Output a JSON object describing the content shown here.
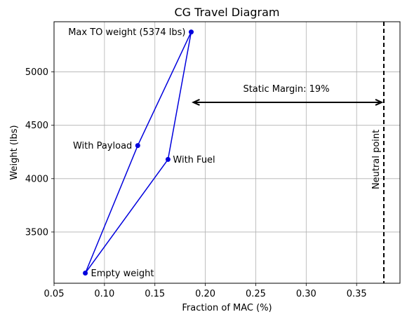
{
  "chart_data": {
    "type": "line",
    "title": "CG Travel Diagram",
    "xlabel": "Fraction of MAC (%)",
    "ylabel": "Weight (lbs)",
    "xlim": [
      0.05,
      0.393
    ],
    "ylim": [
      3020,
      5470
    ],
    "xticks": [
      0.05,
      0.1,
      0.15,
      0.2,
      0.25,
      0.3,
      0.35
    ],
    "xtick_labels": [
      "0.05",
      "0.10",
      "0.15",
      "0.20",
      "0.25",
      "0.30",
      "0.35"
    ],
    "yticks": [
      3500,
      4000,
      4500,
      5000
    ],
    "ytick_labels": [
      "3500",
      "4000",
      "4500",
      "5000"
    ],
    "grid": true,
    "series": [
      {
        "color": "#0000dd",
        "points": [
          {
            "x": 0.081,
            "y": 3115,
            "label": "Empty weight"
          },
          {
            "x": 0.163,
            "y": 4180,
            "label": "With Fuel"
          },
          {
            "x": 0.186,
            "y": 5374,
            "label": "Max TO weight (5374 lbs)"
          },
          {
            "x": 0.133,
            "y": 4310,
            "label": "With Payload"
          },
          {
            "x": 0.081,
            "y": 3115,
            "label": ""
          }
        ]
      }
    ],
    "neutral_point": {
      "x": 0.377,
      "label": "Neutral point"
    },
    "static_margin": {
      "from_x": 0.186,
      "to_x": 0.377,
      "y": 4715,
      "label": "Static Margin: 19%"
    }
  }
}
